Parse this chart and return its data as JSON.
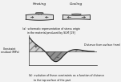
{
  "bg_color": "#f2f2f2",
  "heating_label": "Heating",
  "cooling_label": "Cooling",
  "caption_a": "(a)  schematic representation of stress origin",
  "caption_a2": "      in the material produced by SLM [19]",
  "caption_b": "(b)  evolution of these constraints as a function of distance",
  "caption_b2": "      to the top surface of the part",
  "ylabel": "Constraint\nresidual (MPa)",
  "xlabel": "Distance from surface (mm)",
  "plus_label": "+",
  "minus_label": "-",
  "line_color": "#222222",
  "fill_pos_color": "#d0d0d0",
  "fill_neg_color": "#909090",
  "hatch_color": "#888888"
}
